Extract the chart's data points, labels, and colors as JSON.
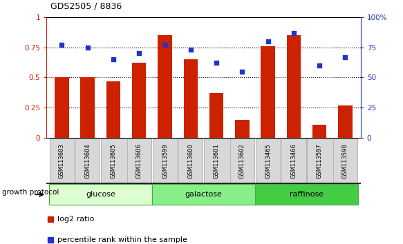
{
  "title": "GDS2505 / 8836",
  "samples": [
    "GSM113603",
    "GSM113604",
    "GSM113605",
    "GSM113606",
    "GSM113599",
    "GSM113600",
    "GSM113601",
    "GSM113602",
    "GSM113465",
    "GSM113466",
    "GSM113597",
    "GSM113598"
  ],
  "log2_ratio": [
    0.5,
    0.5,
    0.47,
    0.62,
    0.85,
    0.65,
    0.37,
    0.15,
    0.76,
    0.85,
    0.11,
    0.27
  ],
  "percentile_rank": [
    77,
    75,
    65,
    70,
    77,
    73,
    62,
    55,
    80,
    87,
    60,
    67
  ],
  "bar_color": "#cc2200",
  "dot_color": "#2233cc",
  "groups": [
    {
      "label": "glucose",
      "start": 0,
      "end": 4,
      "color": "#ddffd0"
    },
    {
      "label": "galactose",
      "start": 4,
      "end": 8,
      "color": "#88ee88"
    },
    {
      "label": "raffinose",
      "start": 8,
      "end": 12,
      "color": "#44cc44"
    }
  ],
  "growth_protocol_label": "growth protocol",
  "legend_log2": "log2 ratio",
  "legend_pct": "percentile rank within the sample",
  "ylim_left": [
    0,
    1.0
  ],
  "ylim_right": [
    0,
    100
  ],
  "yticks_left": [
    0,
    0.25,
    0.5,
    0.75,
    1.0
  ],
  "ytick_labels_left": [
    "0",
    "0.25",
    "0.5",
    "0.75",
    "1"
  ],
  "yticks_right": [
    0,
    25,
    50,
    75,
    100
  ],
  "ytick_labels_right": [
    "0",
    "25",
    "50",
    "75",
    "100%"
  ],
  "xtick_bg": "#d8d8d8",
  "xtick_border": "#aaaaaa"
}
